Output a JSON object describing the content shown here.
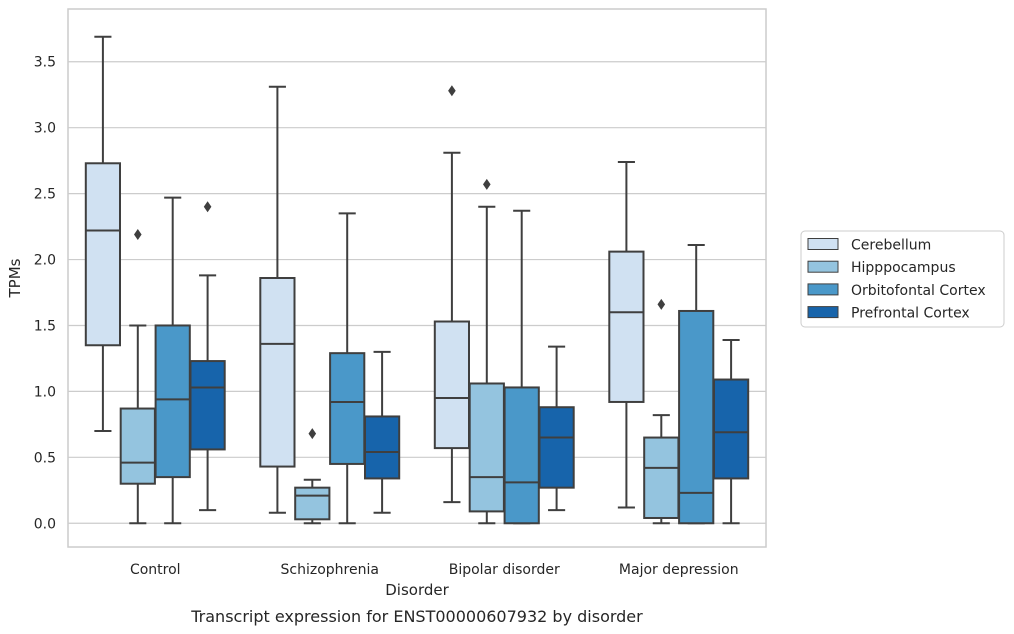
{
  "caption": "Transcript expression for ENST00000607932 by disorder",
  "chart_data": {
    "type": "box",
    "title": "",
    "xlabel": "Disorder",
    "ylabel": "TPMs",
    "ylim": [
      -0.18,
      3.9
    ],
    "yticks": [
      "0.0",
      "0.5",
      "1.0",
      "1.5",
      "2.0",
      "2.5",
      "3.0",
      "3.5"
    ],
    "grid": "horizontal",
    "legend_placement": "right",
    "categories": [
      "Control",
      "Schizophrenia",
      "Bipolar disorder",
      "Major depression"
    ],
    "series": [
      {
        "name": "Cerebellum",
        "color": "#d0e1f2",
        "boxes": [
          {
            "whisker_low": 0.7,
            "q1": 1.35,
            "median": 2.22,
            "q3": 2.73,
            "whisker_high": 3.69,
            "outliers": []
          },
          {
            "whisker_low": 0.08,
            "q1": 0.43,
            "median": 1.36,
            "q3": 1.86,
            "whisker_high": 3.31,
            "outliers": []
          },
          {
            "whisker_low": 0.16,
            "q1": 0.57,
            "median": 0.95,
            "q3": 1.53,
            "whisker_high": 2.81,
            "outliers": [
              3.28
            ]
          },
          {
            "whisker_low": 0.12,
            "q1": 0.92,
            "median": 1.6,
            "q3": 2.06,
            "whisker_high": 2.74,
            "outliers": []
          }
        ]
      },
      {
        "name": "Hipppocampus",
        "color": "#94c4df",
        "boxes": [
          {
            "whisker_low": 0.0,
            "q1": 0.3,
            "median": 0.46,
            "q3": 0.87,
            "whisker_high": 1.5,
            "outliers": [
              2.19
            ]
          },
          {
            "whisker_low": 0.0,
            "q1": 0.03,
            "median": 0.21,
            "q3": 0.27,
            "whisker_high": 0.33,
            "outliers": [
              0.68
            ]
          },
          {
            "whisker_low": 0.0,
            "q1": 0.09,
            "median": 0.35,
            "q3": 1.06,
            "whisker_high": 2.4,
            "outliers": [
              2.57
            ]
          },
          {
            "whisker_low": 0.0,
            "q1": 0.04,
            "median": 0.42,
            "q3": 0.65,
            "whisker_high": 0.82,
            "outliers": [
              1.66
            ]
          }
        ]
      },
      {
        "name": "Orbitofontal Cortex",
        "color": "#4a98c9",
        "boxes": [
          {
            "whisker_low": 0.0,
            "q1": 0.35,
            "median": 0.94,
            "q3": 1.5,
            "whisker_high": 2.47,
            "outliers": []
          },
          {
            "whisker_low": 0.0,
            "q1": 0.45,
            "median": 0.92,
            "q3": 1.29,
            "whisker_high": 2.35,
            "outliers": []
          },
          {
            "whisker_low": 0.0,
            "q1": 0.0,
            "median": 0.31,
            "q3": 1.03,
            "whisker_high": 2.37,
            "outliers": []
          },
          {
            "whisker_low": 0.0,
            "q1": 0.0,
            "median": 0.23,
            "q3": 1.61,
            "whisker_high": 2.11,
            "outliers": []
          }
        ]
      },
      {
        "name": "Prefrontal Cortex",
        "color": "#1764ab",
        "boxes": [
          {
            "whisker_low": 0.1,
            "q1": 0.56,
            "median": 1.03,
            "q3": 1.23,
            "whisker_high": 1.88,
            "outliers": [
              2.4
            ]
          },
          {
            "whisker_low": 0.08,
            "q1": 0.34,
            "median": 0.54,
            "q3": 0.81,
            "whisker_high": 1.3,
            "outliers": []
          },
          {
            "whisker_low": 0.1,
            "q1": 0.27,
            "median": 0.65,
            "q3": 0.88,
            "whisker_high": 1.34,
            "outliers": []
          },
          {
            "whisker_low": 0.0,
            "q1": 0.34,
            "median": 0.69,
            "q3": 1.09,
            "whisker_high": 1.39,
            "outliers": []
          }
        ]
      }
    ]
  }
}
